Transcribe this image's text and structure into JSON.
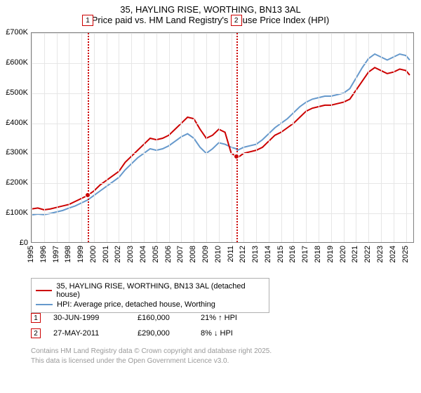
{
  "title": {
    "line1": "35, HAYLING RISE, WORTHING, BN13 3AL",
    "line2": "Price paid vs. HM Land Registry's House Price Index (HPI)",
    "fontsize": 13,
    "color": "#000000"
  },
  "chart": {
    "type": "line",
    "background_color": "#ffffff",
    "grid_color": "#e6e6e6",
    "border_color": "#808080",
    "x_years": [
      1995,
      1996,
      1997,
      1998,
      1999,
      2000,
      2001,
      2002,
      2003,
      2004,
      2005,
      2006,
      2007,
      2008,
      2009,
      2010,
      2011,
      2012,
      2013,
      2014,
      2015,
      2016,
      2017,
      2018,
      2019,
      2020,
      2021,
      2022,
      2023,
      2024,
      2025
    ],
    "xlim": [
      1995,
      2025.7
    ],
    "ylim": [
      0,
      700000
    ],
    "ytick_step": 100000,
    "ytick_labels": [
      "£0",
      "£100K",
      "£200K",
      "£300K",
      "£400K",
      "£500K",
      "£600K",
      "£700K"
    ],
    "series": [
      {
        "name": "35, HAYLING RISE, WORTHING, BN13 3AL (detached house)",
        "color": "#cc0000",
        "width": 2,
        "data": [
          [
            1995.0,
            115000
          ],
          [
            1995.5,
            118000
          ],
          [
            1996.0,
            112000
          ],
          [
            1996.5,
            115000
          ],
          [
            1997.0,
            120000
          ],
          [
            1997.5,
            125000
          ],
          [
            1998.0,
            130000
          ],
          [
            1998.5,
            140000
          ],
          [
            1999.0,
            150000
          ],
          [
            1999.5,
            160000
          ],
          [
            2000.0,
            175000
          ],
          [
            2000.5,
            195000
          ],
          [
            2001.0,
            210000
          ],
          [
            2001.5,
            225000
          ],
          [
            2002.0,
            240000
          ],
          [
            2002.5,
            270000
          ],
          [
            2003.0,
            290000
          ],
          [
            2003.5,
            310000
          ],
          [
            2004.0,
            330000
          ],
          [
            2004.5,
            350000
          ],
          [
            2005.0,
            345000
          ],
          [
            2005.5,
            350000
          ],
          [
            2006.0,
            360000
          ],
          [
            2006.5,
            380000
          ],
          [
            2007.0,
            400000
          ],
          [
            2007.5,
            420000
          ],
          [
            2008.0,
            415000
          ],
          [
            2008.5,
            380000
          ],
          [
            2009.0,
            350000
          ],
          [
            2009.5,
            360000
          ],
          [
            2010.0,
            380000
          ],
          [
            2010.5,
            370000
          ],
          [
            2011.0,
            300000
          ],
          [
            2011.4,
            290000
          ],
          [
            2011.5,
            285000
          ],
          [
            2012.0,
            300000
          ],
          [
            2012.5,
            305000
          ],
          [
            2013.0,
            310000
          ],
          [
            2013.5,
            320000
          ],
          [
            2014.0,
            340000
          ],
          [
            2014.5,
            360000
          ],
          [
            2015.0,
            370000
          ],
          [
            2015.5,
            385000
          ],
          [
            2016.0,
            400000
          ],
          [
            2016.5,
            420000
          ],
          [
            2017.0,
            440000
          ],
          [
            2017.5,
            450000
          ],
          [
            2018.0,
            455000
          ],
          [
            2018.5,
            460000
          ],
          [
            2019.0,
            460000
          ],
          [
            2019.5,
            465000
          ],
          [
            2020.0,
            470000
          ],
          [
            2020.5,
            480000
          ],
          [
            2021.0,
            510000
          ],
          [
            2021.5,
            540000
          ],
          [
            2022.0,
            570000
          ],
          [
            2022.5,
            585000
          ],
          [
            2023.0,
            575000
          ],
          [
            2023.5,
            565000
          ],
          [
            2024.0,
            570000
          ],
          [
            2024.5,
            580000
          ],
          [
            2025.0,
            575000
          ],
          [
            2025.3,
            560000
          ]
        ]
      },
      {
        "name": "HPI: Average price, detached house, Worthing",
        "color": "#6699cc",
        "width": 2,
        "data": [
          [
            1995.0,
            95000
          ],
          [
            1995.5,
            98000
          ],
          [
            1996.0,
            96000
          ],
          [
            1996.5,
            100000
          ],
          [
            1997.0,
            105000
          ],
          [
            1997.5,
            110000
          ],
          [
            1998.0,
            118000
          ],
          [
            1998.5,
            125000
          ],
          [
            1999.0,
            135000
          ],
          [
            1999.5,
            145000
          ],
          [
            2000.0,
            160000
          ],
          [
            2000.5,
            175000
          ],
          [
            2001.0,
            190000
          ],
          [
            2001.5,
            205000
          ],
          [
            2002.0,
            220000
          ],
          [
            2002.5,
            245000
          ],
          [
            2003.0,
            265000
          ],
          [
            2003.5,
            285000
          ],
          [
            2004.0,
            300000
          ],
          [
            2004.5,
            315000
          ],
          [
            2005.0,
            310000
          ],
          [
            2005.5,
            315000
          ],
          [
            2006.0,
            325000
          ],
          [
            2006.5,
            340000
          ],
          [
            2007.0,
            355000
          ],
          [
            2007.5,
            365000
          ],
          [
            2008.0,
            350000
          ],
          [
            2008.5,
            320000
          ],
          [
            2009.0,
            300000
          ],
          [
            2009.5,
            315000
          ],
          [
            2010.0,
            335000
          ],
          [
            2010.5,
            330000
          ],
          [
            2011.0,
            320000
          ],
          [
            2011.4,
            315000
          ],
          [
            2011.5,
            310000
          ],
          [
            2012.0,
            320000
          ],
          [
            2012.5,
            325000
          ],
          [
            2013.0,
            330000
          ],
          [
            2013.5,
            345000
          ],
          [
            2014.0,
            365000
          ],
          [
            2014.5,
            385000
          ],
          [
            2015.0,
            400000
          ],
          [
            2015.5,
            415000
          ],
          [
            2016.0,
            435000
          ],
          [
            2016.5,
            455000
          ],
          [
            2017.0,
            470000
          ],
          [
            2017.5,
            480000
          ],
          [
            2018.0,
            485000
          ],
          [
            2018.5,
            490000
          ],
          [
            2019.0,
            490000
          ],
          [
            2019.5,
            495000
          ],
          [
            2020.0,
            500000
          ],
          [
            2020.5,
            515000
          ],
          [
            2021.0,
            550000
          ],
          [
            2021.5,
            585000
          ],
          [
            2022.0,
            615000
          ],
          [
            2022.5,
            630000
          ],
          [
            2023.0,
            620000
          ],
          [
            2023.5,
            610000
          ],
          [
            2024.0,
            620000
          ],
          [
            2024.5,
            630000
          ],
          [
            2025.0,
            625000
          ],
          [
            2025.3,
            610000
          ]
        ]
      }
    ],
    "markers": [
      {
        "label": "1",
        "x": 1999.5,
        "y": 160000
      },
      {
        "label": "2",
        "x": 2011.4,
        "y": 290000
      }
    ],
    "marker_style": {
      "line_color": "#cc0000",
      "box_border": "#cc0000",
      "box_bg": "#ffffff",
      "dot_color": "#cc0000"
    }
  },
  "legend": {
    "border_color": "#b0b0b0",
    "items": [
      {
        "color": "#cc0000",
        "width": 2,
        "label": "35, HAYLING RISE, WORTHING, BN13 3AL (detached house)"
      },
      {
        "color": "#6699cc",
        "width": 2,
        "label": "HPI: Average price, detached house, Worthing"
      }
    ]
  },
  "sales": [
    {
      "marker": "1",
      "date": "30-JUN-1999",
      "price": "£160,000",
      "delta": "21% ↑ HPI"
    },
    {
      "marker": "2",
      "date": "27-MAY-2011",
      "price": "£290,000",
      "delta": "8% ↓ HPI"
    }
  ],
  "footer": {
    "line1": "Contains HM Land Registry data © Crown copyright and database right 2025.",
    "line2": "This data is licensed under the Open Government Licence v3.0.",
    "color": "#9a9a9a"
  }
}
